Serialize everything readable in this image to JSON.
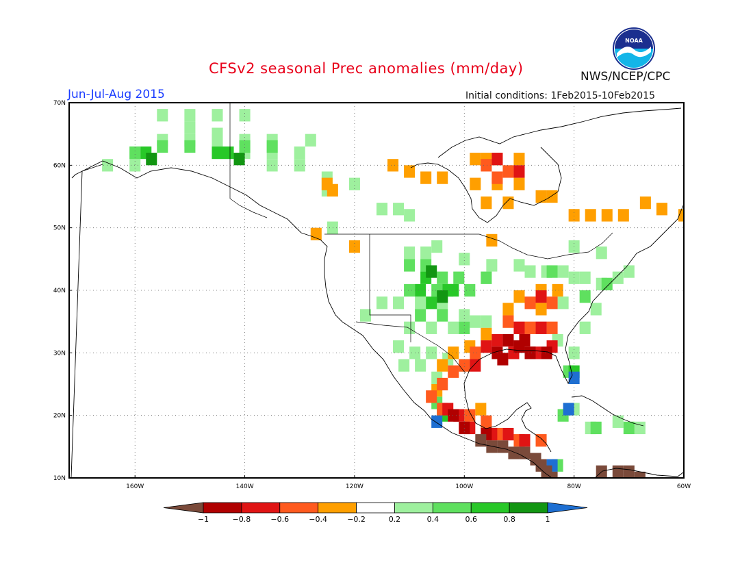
{
  "header": {
    "title": "CFSv2 seasonal Prec anomalies (mm/day)",
    "season": "Jun-Jul-Aug 2015",
    "initial_conditions": "Initial conditions: 1Feb2015-10Feb2015",
    "agency": "NWS/NCEP/CPC",
    "logo_text": "NOAA"
  },
  "map": {
    "lon_range": [
      -172,
      -60
    ],
    "lat_range": [
      10,
      70
    ],
    "lat_ticks": [
      "10N",
      "20N",
      "30N",
      "40N",
      "50N",
      "60N",
      "70N"
    ],
    "lon_ticks": [
      "160W",
      "140W",
      "120W",
      "100W",
      "80W",
      "60W"
    ]
  },
  "legend": {
    "bins": [
      {
        "color": "#7a4a3a"
      },
      {
        "color": "#b00000"
      },
      {
        "color": "#e01414"
      },
      {
        "color": "#ff5a1e"
      },
      {
        "color": "#ff9f00"
      },
      {
        "color": "#ffffff"
      },
      {
        "color": "#9ef09e"
      },
      {
        "color": "#5fe05f"
      },
      {
        "color": "#28c828"
      },
      {
        "color": "#129612"
      },
      {
        "color": "#1e6fd2"
      }
    ],
    "labels": [
      "−1",
      "−0.8",
      "−0.6",
      "−0.4",
      "−0.2",
      "0.2",
      "0.4",
      "0.6",
      "0.8",
      "1"
    ]
  },
  "anomalies": [
    {
      "level": "light-green",
      "color": "#9ef09e",
      "cells": [
        [
          -155,
          68
        ],
        [
          -150,
          68
        ],
        [
          -145,
          68
        ],
        [
          -140,
          68
        ],
        [
          -150,
          66
        ],
        [
          -145,
          65
        ],
        [
          -155,
          64
        ],
        [
          -150,
          64
        ],
        [
          -145,
          64
        ],
        [
          -140,
          64
        ],
        [
          -135,
          64
        ],
        [
          -160,
          62
        ],
        [
          -140,
          62
        ],
        [
          -135,
          62
        ],
        [
          -130,
          62
        ],
        [
          -165,
          60
        ],
        [
          -160,
          60
        ],
        [
          -130,
          60
        ],
        [
          -125,
          58
        ],
        [
          -120,
          57
        ],
        [
          -125,
          56
        ],
        [
          -135,
          60
        ],
        [
          -128,
          64
        ],
        [
          -112,
          53
        ],
        [
          -110,
          52
        ],
        [
          -115,
          53
        ],
        [
          -124,
          50
        ],
        [
          -107,
          46
        ],
        [
          -110,
          46
        ],
        [
          -105,
          47
        ],
        [
          -100,
          45
        ],
        [
          -95,
          44
        ],
        [
          -90,
          44
        ],
        [
          -88,
          43
        ],
        [
          -85,
          43
        ],
        [
          -82,
          43
        ],
        [
          -80,
          42
        ],
        [
          -78,
          42
        ],
        [
          -75,
          41
        ],
        [
          -72,
          42
        ],
        [
          -70,
          43
        ],
        [
          -80,
          47
        ],
        [
          -75,
          46
        ],
        [
          -118,
          36
        ],
        [
          -115,
          38
        ],
        [
          -112,
          38
        ],
        [
          -108,
          38
        ],
        [
          -104,
          38
        ],
        [
          -100,
          36
        ],
        [
          -96,
          35
        ],
        [
          -110,
          34
        ],
        [
          -106,
          34
        ],
        [
          -102,
          34
        ],
        [
          -98,
          35
        ],
        [
          -112,
          31
        ],
        [
          -109,
          30
        ],
        [
          -106,
          30
        ],
        [
          -103,
          29
        ],
        [
          -100,
          28
        ],
        [
          -111,
          28
        ],
        [
          -108,
          28
        ],
        [
          -105,
          26
        ],
        [
          -83,
          32
        ],
        [
          -80,
          30
        ],
        [
          -78,
          34
        ],
        [
          -76,
          37
        ],
        [
          -82,
          38
        ],
        [
          -80,
          21
        ],
        [
          -77,
          18
        ],
        [
          -72,
          19
        ],
        [
          -68,
          18
        ]
      ]
    },
    {
      "level": "green",
      "color": "#5fe05f",
      "cells": [
        [
          -160,
          62
        ],
        [
          -155,
          63
        ],
        [
          -150,
          63
        ],
        [
          -140,
          63
        ],
        [
          -135,
          63
        ],
        [
          -110,
          44
        ],
        [
          -107,
          44
        ],
        [
          -104,
          42
        ],
        [
          -101,
          42
        ],
        [
          -110,
          40
        ],
        [
          -105,
          40
        ],
        [
          -99,
          40
        ],
        [
          -108,
          36
        ],
        [
          -104,
          36
        ],
        [
          -100,
          34
        ],
        [
          -96,
          42
        ],
        [
          -84,
          43
        ],
        [
          -78,
          39
        ],
        [
          -74,
          41
        ],
        [
          -81,
          27
        ],
        [
          -105,
          22
        ],
        [
          -83,
          12
        ],
        [
          -82,
          20
        ],
        [
          -76,
          18
        ],
        [
          -70,
          18
        ]
      ]
    },
    {
      "level": "mid-green",
      "color": "#28c828",
      "cells": [
        [
          -158,
          62
        ],
        [
          -145,
          62
        ],
        [
          -143,
          62
        ],
        [
          -107,
          42
        ],
        [
          -103,
          40
        ],
        [
          -108,
          40
        ],
        [
          -106,
          38
        ],
        [
          -102,
          40
        ],
        [
          -80,
          27
        ],
        [
          -104,
          20
        ]
      ]
    },
    {
      "level": "dark-green",
      "color": "#129612",
      "cells": [
        [
          -157,
          61
        ],
        [
          -141,
          61
        ],
        [
          -106,
          43
        ],
        [
          -104,
          39
        ]
      ]
    },
    {
      "level": "blue",
      "color": "#1e6fd2",
      "cells": [
        [
          -80,
          26
        ],
        [
          -81,
          21
        ],
        [
          -105,
          19
        ],
        [
          -84,
          12
        ]
      ]
    },
    {
      "level": "orange",
      "color": "#ff9f00",
      "cells": [
        [
          -125,
          57
        ],
        [
          -124,
          56
        ],
        [
          -113,
          60
        ],
        [
          -110,
          59
        ],
        [
          -107,
          58
        ],
        [
          -104,
          58
        ],
        [
          -98,
          61
        ],
        [
          -96,
          61
        ],
        [
          -94,
          61
        ],
        [
          -90,
          61
        ],
        [
          -98,
          57
        ],
        [
          -94,
          57
        ],
        [
          -90,
          57
        ],
        [
          -86,
          55
        ],
        [
          -84,
          55
        ],
        [
          -96,
          54
        ],
        [
          -92,
          54
        ],
        [
          -80,
          52
        ],
        [
          -77,
          52
        ],
        [
          -74,
          52
        ],
        [
          -71,
          52
        ],
        [
          -60,
          52
        ],
        [
          -64,
          53
        ],
        [
          -67,
          54
        ],
        [
          -127,
          49
        ],
        [
          -120,
          47
        ],
        [
          -95,
          48
        ],
        [
          -90,
          39
        ],
        [
          -86,
          40
        ],
        [
          -83,
          40
        ],
        [
          -92,
          37
        ],
        [
          -86,
          37
        ],
        [
          -96,
          33
        ],
        [
          -99,
          31
        ],
        [
          -102,
          30
        ],
        [
          -104,
          28
        ],
        [
          -105,
          24
        ],
        [
          -97,
          21
        ]
      ]
    },
    {
      "level": "red-orange",
      "color": "#ff5a1e",
      "cells": [
        [
          -96,
          60
        ],
        [
          -94,
          58
        ],
        [
          -92,
          59
        ],
        [
          -88,
          38
        ],
        [
          -84,
          38
        ],
        [
          -92,
          35
        ],
        [
          -88,
          34
        ],
        [
          -84,
          34
        ],
        [
          -98,
          30
        ],
        [
          -100,
          28
        ],
        [
          -102,
          27
        ],
        [
          -104,
          25
        ],
        [
          -106,
          23
        ],
        [
          -104,
          21
        ],
        [
          -99,
          20
        ],
        [
          -96,
          19
        ],
        [
          -94,
          17
        ],
        [
          -90,
          16
        ],
        [
          -86,
          16
        ]
      ]
    },
    {
      "level": "red",
      "color": "#e01414",
      "cells": [
        [
          -94,
          61
        ],
        [
          -90,
          59
        ],
        [
          -86,
          39
        ],
        [
          -90,
          34
        ],
        [
          -86,
          34
        ],
        [
          -94,
          32
        ],
        [
          -96,
          31
        ],
        [
          -91,
          30
        ],
        [
          -87,
          30
        ],
        [
          -84,
          31
        ],
        [
          -98,
          28
        ],
        [
          -103,
          21
        ],
        [
          -101,
          20
        ],
        [
          -99,
          18
        ],
        [
          -95,
          17
        ],
        [
          -92,
          17
        ],
        [
          -89,
          16
        ]
      ]
    },
    {
      "level": "dark-red",
      "color": "#b00000",
      "cells": [
        [
          -92,
          32
        ],
        [
          -89,
          32
        ],
        [
          -90,
          31
        ],
        [
          -94,
          30
        ],
        [
          -88,
          30
        ],
        [
          -93,
          29
        ],
        [
          -85,
          30
        ],
        [
          -102,
          20
        ],
        [
          -100,
          18
        ],
        [
          -96,
          17
        ]
      ]
    },
    {
      "level": "brown",
      "color": "#7a4a3a",
      "cells": [
        [
          -97,
          16
        ],
        [
          -95,
          15
        ],
        [
          -93,
          15
        ],
        [
          -91,
          14
        ],
        [
          -89,
          14
        ],
        [
          -87,
          13
        ],
        [
          -86,
          12
        ],
        [
          -85,
          11
        ],
        [
          -84,
          10
        ],
        [
          -75,
          11
        ],
        [
          -72,
          11
        ],
        [
          -70,
          11
        ],
        [
          -68,
          10
        ]
      ]
    }
  ]
}
